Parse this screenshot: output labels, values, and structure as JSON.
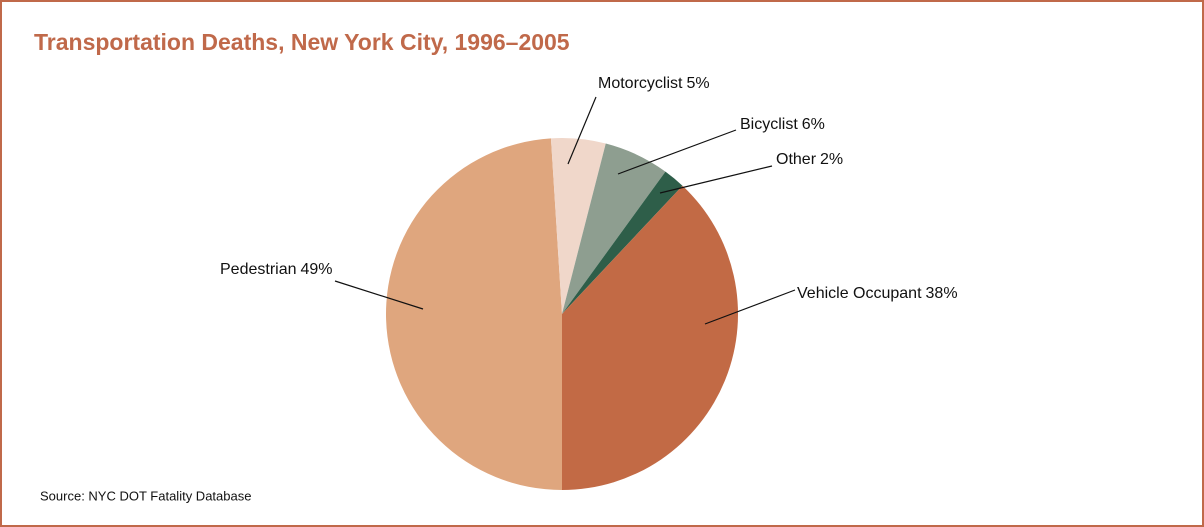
{
  "chart_data": {
    "type": "pie",
    "title": "Transportation Deaths, New York City, 1996–2005",
    "categories": [
      "Pedestrian",
      "Motorcyclist",
      "Bicyclist",
      "Other",
      "Vehicle Occupant"
    ],
    "values": [
      49,
      5,
      6,
      2,
      38
    ],
    "value_labels": [
      "49%",
      "5%",
      "6%",
      "2%",
      "38%"
    ],
    "colors": [
      "#dfa67e",
      "#f0d7ca",
      "#8e9e90",
      "#2e5e49",
      "#c26a45"
    ],
    "source": "Source: NYC DOT Fatality Database"
  }
}
